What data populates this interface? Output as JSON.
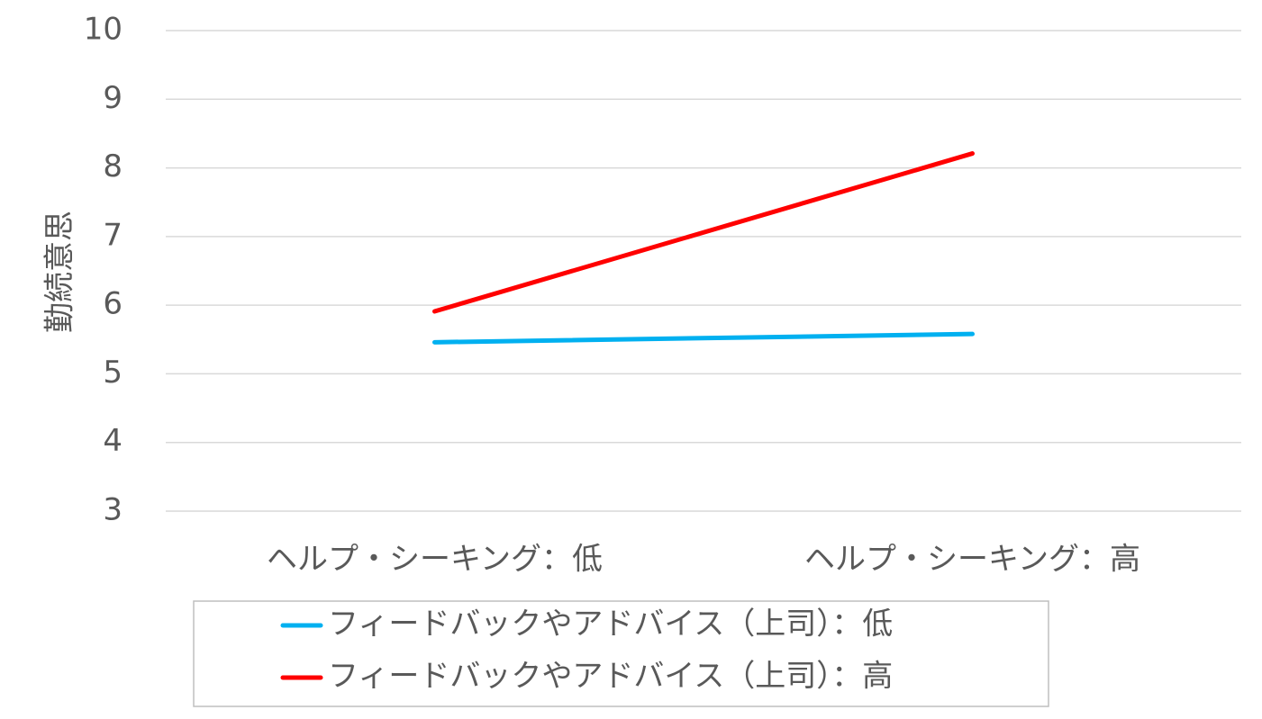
{
  "chart_data": {
    "type": "line",
    "title": "",
    "xlabel": "",
    "ylabel": "勤続意思",
    "categories": [
      "ヘルプ・シーキング：低",
      "ヘルプ・シーキング：高"
    ],
    "ylim": [
      3,
      10
    ],
    "yticks": [
      3,
      4,
      5,
      6,
      7,
      8,
      9,
      10
    ],
    "grid": true,
    "legend_position": "bottom",
    "series": [
      {
        "name": "フィードバックやアドバイス（上司）：低",
        "values": [
          5.46,
          5.58
        ],
        "color": "#00b0f0"
      },
      {
        "name": "フィードバックやアドバイス（上司）：高",
        "values": [
          5.91,
          8.21
        ],
        "color": "#ff0000"
      }
    ]
  }
}
